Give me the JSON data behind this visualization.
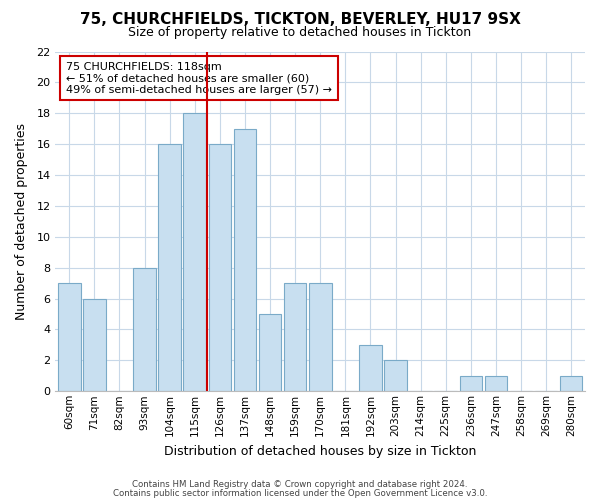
{
  "title": "75, CHURCHFIELDS, TICKTON, BEVERLEY, HU17 9SX",
  "subtitle": "Size of property relative to detached houses in Tickton",
  "xlabel": "Distribution of detached houses by size in Tickton",
  "ylabel": "Number of detached properties",
  "bar_labels": [
    "60sqm",
    "71sqm",
    "82sqm",
    "93sqm",
    "104sqm",
    "115sqm",
    "126sqm",
    "137sqm",
    "148sqm",
    "159sqm",
    "170sqm",
    "181sqm",
    "192sqm",
    "203sqm",
    "214sqm",
    "225sqm",
    "236sqm",
    "247sqm",
    "258sqm",
    "269sqm",
    "280sqm"
  ],
  "bar_values": [
    7,
    6,
    0,
    8,
    16,
    18,
    16,
    17,
    5,
    7,
    7,
    0,
    3,
    2,
    0,
    0,
    1,
    1,
    0,
    0,
    1
  ],
  "bar_color": "#c8dff0",
  "bar_edge_color": "#7aaac8",
  "reference_line_x": 5.5,
  "reference_line_color": "#cc0000",
  "annotation_title": "75 CHURCHFIELDS: 118sqm",
  "annotation_line1": "← 51% of detached houses are smaller (60)",
  "annotation_line2": "49% of semi-detached houses are larger (57) →",
  "annotation_box_edge": "#cc0000",
  "ylim": [
    0,
    22
  ],
  "yticks": [
    0,
    2,
    4,
    6,
    8,
    10,
    12,
    14,
    16,
    18,
    20,
    22
  ],
  "footer1": "Contains HM Land Registry data © Crown copyright and database right 2024.",
  "footer2": "Contains public sector information licensed under the Open Government Licence v3.0.",
  "bg_color": "#ffffff",
  "grid_color": "#c8d8e8"
}
